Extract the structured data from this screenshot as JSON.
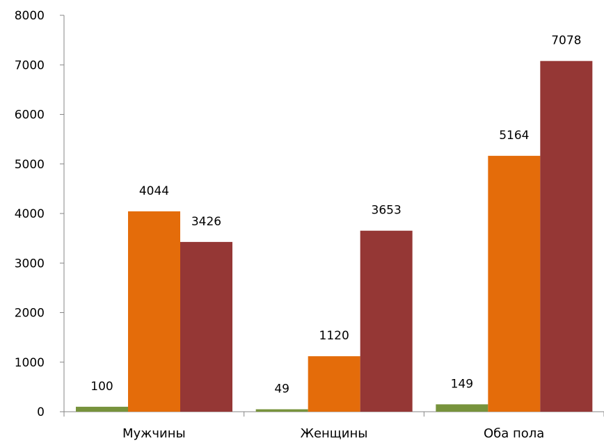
{
  "chart_data": {
    "type": "bar",
    "categories": [
      "Мужчины",
      "Женщины",
      "Оба пола"
    ],
    "series": [
      {
        "color": "#77933C",
        "values": [
          100,
          49,
          149
        ]
      },
      {
        "color": "#E46C0A",
        "values": [
          4044,
          1120,
          5164
        ]
      },
      {
        "color": "#953735",
        "values": [
          3426,
          3653,
          7078
        ]
      }
    ],
    "ylim": [
      0,
      8000
    ],
    "yticks": [
      0,
      1000,
      2000,
      3000,
      4000,
      5000,
      6000,
      7000,
      8000
    ],
    "grid": false,
    "legend": "none",
    "data_labels": true
  }
}
